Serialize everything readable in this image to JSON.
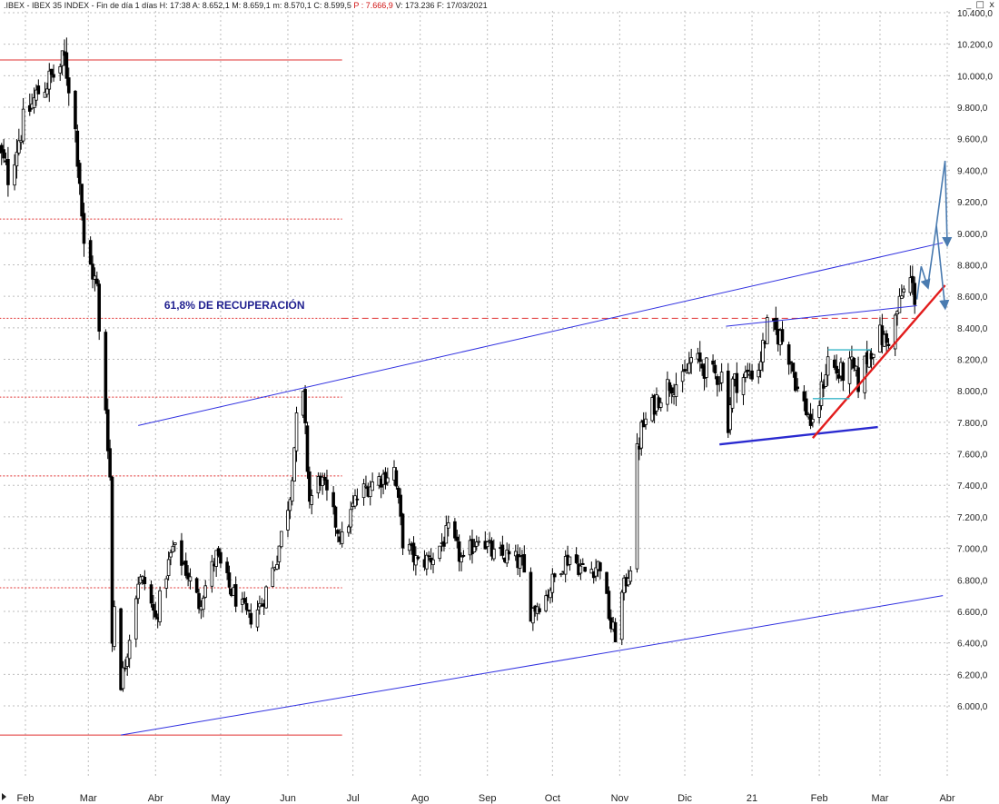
{
  "header": {
    "ticker": ".IBEX",
    "name": "IBEX 35 INDEX",
    "period": "Fin de día 1 días",
    "hour": "H: 17:38",
    "open": "A: 8.652,1",
    "max": "M: 8.659,1",
    "min": "m: 8.570,1",
    "close": "C: 8.599,5",
    "prev": "P : 7.666,9",
    "volume": "V: 173.236",
    "date": "F: 17/03/2021"
  },
  "window_controls": [
    "_",
    "□",
    "x"
  ],
  "colors": {
    "channel_line": "#3030e0",
    "fib_line": "#e03030",
    "support_line_thick": "#2a2ad0",
    "trend_red": "#e21d1d",
    "projection_arrow": "#4a7bb0",
    "candle_up": "#ffffff",
    "candle_down": "#000000",
    "grid": "#bdbdbd"
  },
  "chart_data": {
    "type": "candlestick",
    "title": ".IBEX - IBEX 35 INDEX",
    "ylim": [
      5750,
      10400
    ],
    "yticks": [
      6000,
      6200,
      6400,
      6600,
      6800,
      7000,
      7200,
      7400,
      7600,
      7800,
      8000,
      8200,
      8400,
      8600,
      8800,
      9000,
      9200,
      9400,
      9600,
      9800,
      10000,
      10200,
      10400
    ],
    "ytick_labels": [
      "6.000,0",
      "6.200,0",
      "6.400,0",
      "6.600,0",
      "6.800,0",
      "7.000,0",
      "7.200,0",
      "7.400,0",
      "7.600,0",
      "7.800,0",
      "8.000,0",
      "8.200,0",
      "8.400,0",
      "8.600,0",
      "8.800,0",
      "9.000,0",
      "9.200,0",
      "9.400,0",
      "9.600,0",
      "9.800,0",
      "10.000,0",
      "10.200,0",
      "10.400,0"
    ],
    "x_labels": [
      {
        "label": "Feb",
        "date": "2020-02-01"
      },
      {
        "label": "Mar",
        "date": "2020-03-01"
      },
      {
        "label": "Abr",
        "date": "2020-04-01"
      },
      {
        "label": "May",
        "date": "2020-05-01"
      },
      {
        "label": "Jun",
        "date": "2020-06-01"
      },
      {
        "label": "Jul",
        "date": "2020-07-01"
      },
      {
        "label": "Ago",
        "date": "2020-08-01"
      },
      {
        "label": "Sep",
        "date": "2020-09-01"
      },
      {
        "label": "Oct",
        "date": "2020-10-01"
      },
      {
        "label": "Nov",
        "date": "2020-11-01"
      },
      {
        "label": "Dic",
        "date": "2020-12-01"
      },
      {
        "label": "21",
        "date": "2021-01-01"
      },
      {
        "label": "Feb",
        "date": "2021-02-01"
      },
      {
        "label": "Mar",
        "date": "2021-03-01"
      },
      {
        "label": "Abr",
        "date": "2021-04-01"
      }
    ],
    "grid": true,
    "anchors": [
      {
        "date": "2020-01-20",
        "close": 9520
      },
      {
        "date": "2020-01-24",
        "close": 9360
      },
      {
        "date": "2020-01-31",
        "close": 9700
      },
      {
        "date": "2020-02-07",
        "close": 9900
      },
      {
        "date": "2020-02-14",
        "close": 10000
      },
      {
        "date": "2020-02-19",
        "close": 10100
      },
      {
        "date": "2020-02-21",
        "close": 9950
      },
      {
        "date": "2020-02-24",
        "close": 9650
      },
      {
        "date": "2020-02-26",
        "close": 9350
      },
      {
        "date": "2020-02-28",
        "close": 8900
      },
      {
        "date": "2020-03-03",
        "close": 8750
      },
      {
        "date": "2020-03-05",
        "close": 8650
      },
      {
        "date": "2020-03-06",
        "close": 8350
      },
      {
        "date": "2020-03-09",
        "close": 7900
      },
      {
        "date": "2020-03-11",
        "close": 7450
      },
      {
        "date": "2020-03-12",
        "close": 6400
      },
      {
        "date": "2020-03-13",
        "close": 6650
      },
      {
        "date": "2020-03-16",
        "close": 6150
      },
      {
        "date": "2020-03-18",
        "close": 6270
      },
      {
        "date": "2020-03-20",
        "close": 6450
      },
      {
        "date": "2020-03-24",
        "close": 6800
      },
      {
        "date": "2020-03-27",
        "close": 6780
      },
      {
        "date": "2020-04-01",
        "close": 6550
      },
      {
        "date": "2020-04-06",
        "close": 6850
      },
      {
        "date": "2020-04-09",
        "close": 7000
      },
      {
        "date": "2020-04-14",
        "close": 6900
      },
      {
        "date": "2020-04-21",
        "close": 6650
      },
      {
        "date": "2020-04-29",
        "close": 6950
      },
      {
        "date": "2020-05-05",
        "close": 6750
      },
      {
        "date": "2020-05-14",
        "close": 6550
      },
      {
        "date": "2020-05-20",
        "close": 6650
      },
      {
        "date": "2020-05-27",
        "close": 6950
      },
      {
        "date": "2020-06-02",
        "close": 7350
      },
      {
        "date": "2020-06-05",
        "close": 7800
      },
      {
        "date": "2020-06-08",
        "close": 7950
      },
      {
        "date": "2020-06-11",
        "close": 7300
      },
      {
        "date": "2020-06-16",
        "close": 7450
      },
      {
        "date": "2020-06-22",
        "close": 7200
      },
      {
        "date": "2020-06-26",
        "close": 7050
      },
      {
        "date": "2020-07-02",
        "close": 7300
      },
      {
        "date": "2020-07-08",
        "close": 7400
      },
      {
        "date": "2020-07-14",
        "close": 7450
      },
      {
        "date": "2020-07-20",
        "close": 7500
      },
      {
        "date": "2020-07-24",
        "close": 7050
      },
      {
        "date": "2020-07-31",
        "close": 6900
      },
      {
        "date": "2020-08-07",
        "close": 6950
      },
      {
        "date": "2020-08-14",
        "close": 7100
      },
      {
        "date": "2020-08-21",
        "close": 6900
      },
      {
        "date": "2020-08-28",
        "close": 7100
      },
      {
        "date": "2020-09-04",
        "close": 6950
      },
      {
        "date": "2020-09-10",
        "close": 6950
      },
      {
        "date": "2020-09-17",
        "close": 6900
      },
      {
        "date": "2020-09-21",
        "close": 6600
      },
      {
        "date": "2020-09-28",
        "close": 6700
      },
      {
        "date": "2020-10-05",
        "close": 6900
      },
      {
        "date": "2020-10-09",
        "close": 6950
      },
      {
        "date": "2020-10-16",
        "close": 6850
      },
      {
        "date": "2020-10-23",
        "close": 6900
      },
      {
        "date": "2020-10-28",
        "close": 6500
      },
      {
        "date": "2020-10-30",
        "close": 6450
      },
      {
        "date": "2020-11-02",
        "close": 6700
      },
      {
        "date": "2020-11-06",
        "close": 6900
      },
      {
        "date": "2020-11-09",
        "close": 7600
      },
      {
        "date": "2020-11-11",
        "close": 7750
      },
      {
        "date": "2020-11-18",
        "close": 7950
      },
      {
        "date": "2020-11-24",
        "close": 8050
      },
      {
        "date": "2020-11-30",
        "close": 8050
      },
      {
        "date": "2020-12-04",
        "close": 8200
      },
      {
        "date": "2020-12-10",
        "close": 8150
      },
      {
        "date": "2020-12-14",
        "close": 8100
      },
      {
        "date": "2020-12-18",
        "close": 8100
      },
      {
        "date": "2020-12-21",
        "close": 7800
      },
      {
        "date": "2020-12-23",
        "close": 8050
      },
      {
        "date": "2020-12-30",
        "close": 8100
      },
      {
        "date": "2021-01-04",
        "close": 8150
      },
      {
        "date": "2021-01-08",
        "close": 8400
      },
      {
        "date": "2021-01-14",
        "close": 8350
      },
      {
        "date": "2021-01-19",
        "close": 8200
      },
      {
        "date": "2021-01-22",
        "close": 8000
      },
      {
        "date": "2021-01-27",
        "close": 7850
      },
      {
        "date": "2021-01-29",
        "close": 7750
      },
      {
        "date": "2021-02-02",
        "close": 8000
      },
      {
        "date": "2021-02-05",
        "close": 8200
      },
      {
        "date": "2021-02-10",
        "close": 8100
      },
      {
        "date": "2021-02-16",
        "close": 8150
      },
      {
        "date": "2021-02-19",
        "close": 8050
      },
      {
        "date": "2021-02-24",
        "close": 8250
      },
      {
        "date": "2021-03-01",
        "close": 8350
      },
      {
        "date": "2021-03-04",
        "close": 8300
      },
      {
        "date": "2021-03-08",
        "close": 8450
      },
      {
        "date": "2021-03-11",
        "close": 8600
      },
      {
        "date": "2021-03-15",
        "close": 8700
      },
      {
        "date": "2021-03-17",
        "close": 8600
      }
    ],
    "annotations": [
      {
        "type": "text",
        "text": "61,8% DE RECUPERACIÓN",
        "date": "2020-04-05",
        "value": 8520
      }
    ],
    "fib_box": {
      "start": "2020-01-20",
      "end": "2020-06-26",
      "high": 10100,
      "low": 5815,
      "levels": [
        9090,
        8460,
        7960,
        7460,
        6750
      ]
    },
    "retracement_618_line": {
      "start": "2020-06-26",
      "end": "2021-03-17",
      "value": 8460
    },
    "channel_upper": [
      {
        "date": "2020-03-24",
        "value": 7780
      },
      {
        "date": "2021-03-30",
        "value": 8940
      }
    ],
    "channel_lower": [
      {
        "date": "2020-03-16",
        "value": 5815
      },
      {
        "date": "2021-03-30",
        "value": 6700
      }
    ],
    "support_triangle_top": [
      {
        "date": "2020-12-20",
        "value": 8410
      },
      {
        "date": "2021-03-18",
        "value": 8540
      }
    ],
    "support_triangle_bottom": [
      {
        "date": "2020-12-17",
        "value": 7660
      },
      {
        "date": "2021-02-28",
        "value": 7770
      }
    ],
    "trendline_red": [
      {
        "date": "2021-01-29",
        "value": 7700
      },
      {
        "date": "2021-03-31",
        "value": 8670
      }
    ],
    "cyan_markers": [
      {
        "start": "2021-01-29",
        "end": "2021-02-15",
        "value": 7950
      },
      {
        "start": "2021-02-05",
        "end": "2021-02-25",
        "value": 8260
      }
    ],
    "projection_arrows": [
      [
        {
          "date": "2021-03-18",
          "value": 8580
        },
        {
          "date": "2021-03-20",
          "value": 8790
        },
        {
          "date": "2021-03-23",
          "value": 8660
        }
      ],
      [
        {
          "date": "2021-03-23",
          "value": 8660
        },
        {
          "date": "2021-03-27",
          "value": 9050
        },
        {
          "date": "2021-03-31",
          "value": 8530
        }
      ],
      [
        {
          "date": "2021-03-27",
          "value": 9050
        },
        {
          "date": "2021-03-31",
          "value": 9460
        },
        {
          "date": "2021-04-01",
          "value": 8930
        }
      ]
    ]
  }
}
